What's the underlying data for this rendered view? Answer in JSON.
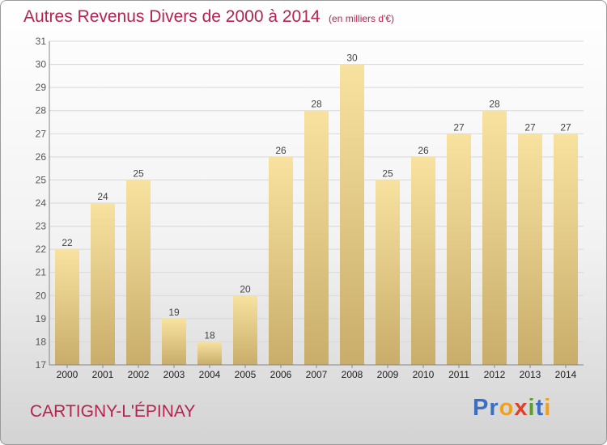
{
  "chart_data": {
    "type": "bar",
    "title": "Autres Revenus Divers de 2000 à 2014",
    "unit": "(en milliers d'€)",
    "categories": [
      "2000",
      "2001",
      "2002",
      "2003",
      "2004",
      "2005",
      "2006",
      "2007",
      "2008",
      "2009",
      "2010",
      "2011",
      "2012",
      "2013",
      "2014"
    ],
    "values": [
      22,
      24,
      25,
      19,
      18,
      20,
      26,
      28,
      30,
      25,
      26,
      27,
      28,
      27,
      27
    ],
    "ylim": [
      17,
      31
    ],
    "yticks": [
      17,
      18,
      19,
      20,
      21,
      22,
      23,
      24,
      25,
      26,
      27,
      28,
      29,
      30,
      31
    ],
    "grid": true,
    "bar_color_light": "#f8e2a0",
    "bar_color_dark": "#c9ad6a"
  },
  "commune": "CARTIGNY-L'ÉPINAY",
  "logo": {
    "letters": [
      "P",
      "r",
      "o",
      "x",
      "i",
      "t",
      "i"
    ],
    "colors": [
      "#3b6fc4",
      "#3b6fc4",
      "#f0a01c",
      "#e0402a",
      "#5aa02c",
      "#3b6fc4",
      "#f0a01c"
    ]
  },
  "colors": {
    "title": "#b5234f",
    "grid": "#d8d8d8",
    "axis": "#555555"
  }
}
